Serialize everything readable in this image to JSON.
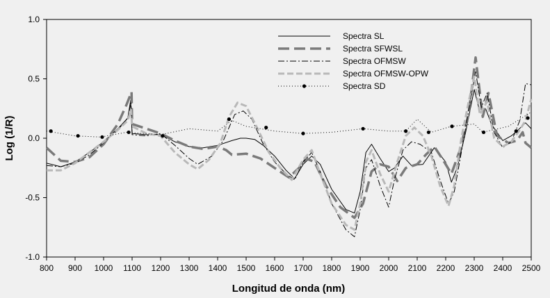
{
  "chart_data": {
    "type": "line",
    "title": "",
    "xlabel": "Longitud de onda (nm)",
    "ylabel": "Log (1/R)",
    "xlim": [
      800,
      2500
    ],
    "ylim": [
      -1.0,
      1.0
    ],
    "x_ticks": [
      800,
      900,
      1000,
      1100,
      1200,
      1300,
      1400,
      1500,
      1600,
      1700,
      1800,
      1900,
      2000,
      2100,
      2200,
      2300,
      2400,
      2500
    ],
    "y_ticks": [
      -1.0,
      -0.5,
      0.0,
      0.5,
      1.0
    ],
    "y_tick_labels": [
      "-1.0",
      "-0.5",
      "0.0",
      "0.5",
      "1.0"
    ],
    "grid": false,
    "legend_position": "top-right",
    "series": [
      {
        "name": "Spectra SL",
        "style": "solid",
        "color": "#000000",
        "points": [
          [
            800,
            -0.21
          ],
          [
            850,
            -0.24
          ],
          [
            900,
            -0.2
          ],
          [
            950,
            -0.12
          ],
          [
            1000,
            -0.03
          ],
          [
            1050,
            0.08
          ],
          [
            1085,
            0.17
          ],
          [
            1095,
            0.32
          ],
          [
            1100,
            0.04
          ],
          [
            1150,
            0.03
          ],
          [
            1200,
            0.03
          ],
          [
            1250,
            -0.03
          ],
          [
            1300,
            -0.07
          ],
          [
            1350,
            -0.08
          ],
          [
            1400,
            -0.06
          ],
          [
            1450,
            -0.02
          ],
          [
            1480,
            0.0
          ],
          [
            1500,
            0.0
          ],
          [
            1530,
            -0.01
          ],
          [
            1560,
            -0.06
          ],
          [
            1600,
            -0.15
          ],
          [
            1640,
            -0.27
          ],
          [
            1670,
            -0.34
          ],
          [
            1700,
            -0.22
          ],
          [
            1730,
            -0.15
          ],
          [
            1760,
            -0.22
          ],
          [
            1800,
            -0.43
          ],
          [
            1850,
            -0.6
          ],
          [
            1880,
            -0.63
          ],
          [
            1900,
            -0.45
          ],
          [
            1920,
            -0.12
          ],
          [
            1940,
            -0.05
          ],
          [
            1970,
            -0.17
          ],
          [
            2000,
            -0.28
          ],
          [
            2020,
            -0.25
          ],
          [
            2050,
            -0.15
          ],
          [
            2080,
            -0.23
          ],
          [
            2120,
            -0.22
          ],
          [
            2160,
            -0.08
          ],
          [
            2200,
            -0.2
          ],
          [
            2220,
            -0.37
          ],
          [
            2240,
            -0.25
          ],
          [
            2270,
            0.05
          ],
          [
            2300,
            0.41
          ],
          [
            2320,
            0.22
          ],
          [
            2340,
            0.25
          ],
          [
            2360,
            0.12
          ],
          [
            2400,
            -0.02
          ],
          [
            2430,
            0.02
          ],
          [
            2450,
            0.06
          ],
          [
            2480,
            0.13
          ],
          [
            2500,
            0.08
          ]
        ]
      },
      {
        "name": "Spectra SFWSL",
        "style": "long-dash",
        "color": "#7a7a7a",
        "points": [
          [
            800,
            -0.08
          ],
          [
            850,
            -0.19
          ],
          [
            900,
            -0.2
          ],
          [
            950,
            -0.16
          ],
          [
            1000,
            -0.05
          ],
          [
            1050,
            0.12
          ],
          [
            1080,
            0.28
          ],
          [
            1098,
            0.39
          ],
          [
            1100,
            0.12
          ],
          [
            1150,
            0.08
          ],
          [
            1200,
            0.04
          ],
          [
            1250,
            -0.02
          ],
          [
            1300,
            -0.07
          ],
          [
            1350,
            -0.09
          ],
          [
            1400,
            -0.07
          ],
          [
            1430,
            -0.1
          ],
          [
            1450,
            -0.14
          ],
          [
            1500,
            -0.13
          ],
          [
            1550,
            -0.17
          ],
          [
            1600,
            -0.25
          ],
          [
            1650,
            -0.33
          ],
          [
            1690,
            -0.24
          ],
          [
            1710,
            -0.17
          ],
          [
            1740,
            -0.2
          ],
          [
            1780,
            -0.4
          ],
          [
            1830,
            -0.58
          ],
          [
            1880,
            -0.67
          ],
          [
            1910,
            -0.55
          ],
          [
            1940,
            -0.28
          ],
          [
            1970,
            -0.22
          ],
          [
            2000,
            -0.24
          ],
          [
            2030,
            -0.36
          ],
          [
            2060,
            -0.25
          ],
          [
            2100,
            -0.22
          ],
          [
            2130,
            -0.14
          ],
          [
            2160,
            -0.07
          ],
          [
            2190,
            -0.18
          ],
          [
            2220,
            -0.3
          ],
          [
            2250,
            -0.1
          ],
          [
            2280,
            0.2
          ],
          [
            2305,
            0.68
          ],
          [
            2330,
            0.18
          ],
          [
            2350,
            0.38
          ],
          [
            2380,
            0.02
          ],
          [
            2420,
            -0.04
          ],
          [
            2450,
            -0.02
          ],
          [
            2470,
            0.05
          ],
          [
            2480,
            -0.04
          ],
          [
            2500,
            -0.08
          ]
        ]
      },
      {
        "name": "Spectra OFMSW",
        "style": "dash-dot",
        "color": "#000000",
        "points": [
          [
            800,
            -0.23
          ],
          [
            850,
            -0.24
          ],
          [
            900,
            -0.21
          ],
          [
            950,
            -0.14
          ],
          [
            1000,
            -0.04
          ],
          [
            1050,
            0.07
          ],
          [
            1085,
            0.17
          ],
          [
            1096,
            0.3
          ],
          [
            1100,
            0.03
          ],
          [
            1150,
            0.02
          ],
          [
            1200,
            0.04
          ],
          [
            1250,
            -0.06
          ],
          [
            1300,
            -0.17
          ],
          [
            1330,
            -0.22
          ],
          [
            1380,
            -0.15
          ],
          [
            1420,
            -0.02
          ],
          [
            1460,
            0.2
          ],
          [
            1490,
            0.23
          ],
          [
            1520,
            0.16
          ],
          [
            1560,
            -0.05
          ],
          [
            1600,
            -0.2
          ],
          [
            1640,
            -0.3
          ],
          [
            1670,
            -0.35
          ],
          [
            1700,
            -0.2
          ],
          [
            1730,
            -0.12
          ],
          [
            1760,
            -0.28
          ],
          [
            1800,
            -0.55
          ],
          [
            1850,
            -0.77
          ],
          [
            1880,
            -0.83
          ],
          [
            1900,
            -0.6
          ],
          [
            1920,
            -0.25
          ],
          [
            1940,
            -0.18
          ],
          [
            1970,
            -0.4
          ],
          [
            2000,
            -0.58
          ],
          [
            2020,
            -0.35
          ],
          [
            2050,
            -0.1
          ],
          [
            2080,
            -0.03
          ],
          [
            2110,
            -0.05
          ],
          [
            2150,
            -0.12
          ],
          [
            2180,
            -0.35
          ],
          [
            2210,
            -0.55
          ],
          [
            2230,
            -0.45
          ],
          [
            2260,
            -0.05
          ],
          [
            2285,
            0.3
          ],
          [
            2305,
            0.56
          ],
          [
            2325,
            0.26
          ],
          [
            2345,
            0.38
          ],
          [
            2370,
            0.05
          ],
          [
            2400,
            -0.08
          ],
          [
            2430,
            -0.03
          ],
          [
            2460,
            0.15
          ],
          [
            2480,
            0.46
          ],
          [
            2500,
            0.45
          ]
        ]
      },
      {
        "name": "Spectra OFMSW-OPW",
        "style": "dash",
        "color": "#b8b8b8",
        "points": [
          [
            800,
            -0.27
          ],
          [
            850,
            -0.27
          ],
          [
            900,
            -0.21
          ],
          [
            950,
            -0.12
          ],
          [
            1000,
            -0.03
          ],
          [
            1050,
            0.07
          ],
          [
            1085,
            0.15
          ],
          [
            1096,
            0.24
          ],
          [
            1100,
            0.1
          ],
          [
            1150,
            0.04
          ],
          [
            1200,
            0.02
          ],
          [
            1250,
            -0.12
          ],
          [
            1300,
            -0.22
          ],
          [
            1330,
            -0.26
          ],
          [
            1370,
            -0.18
          ],
          [
            1410,
            -0.04
          ],
          [
            1440,
            0.18
          ],
          [
            1470,
            0.3
          ],
          [
            1500,
            0.27
          ],
          [
            1540,
            0.08
          ],
          [
            1580,
            -0.12
          ],
          [
            1620,
            -0.25
          ],
          [
            1660,
            -0.35
          ],
          [
            1700,
            -0.18
          ],
          [
            1730,
            -0.1
          ],
          [
            1760,
            -0.3
          ],
          [
            1800,
            -0.55
          ],
          [
            1850,
            -0.73
          ],
          [
            1880,
            -0.77
          ],
          [
            1900,
            -0.55
          ],
          [
            1920,
            -0.2
          ],
          [
            1940,
            -0.1
          ],
          [
            1970,
            -0.3
          ],
          [
            2000,
            -0.45
          ],
          [
            2030,
            -0.2
          ],
          [
            2060,
            0.02
          ],
          [
            2090,
            0.09
          ],
          [
            2120,
            0.02
          ],
          [
            2150,
            -0.15
          ],
          [
            2180,
            -0.4
          ],
          [
            2210,
            -0.57
          ],
          [
            2230,
            -0.4
          ],
          [
            2255,
            0.0
          ],
          [
            2280,
            0.3
          ],
          [
            2300,
            0.52
          ],
          [
            2320,
            0.2
          ],
          [
            2345,
            0.31
          ],
          [
            2370,
            0.0
          ],
          [
            2400,
            -0.07
          ],
          [
            2430,
            -0.03
          ],
          [
            2460,
            0.07
          ],
          [
            2480,
            0.15
          ],
          [
            2500,
            0.33
          ]
        ]
      },
      {
        "name": "Spectra SD",
        "style": "dotted",
        "color": "#000000",
        "points": [
          [
            800,
            0.06
          ],
          [
            900,
            0.02
          ],
          [
            990,
            0.01
          ],
          [
            1080,
            0.05
          ],
          [
            1200,
            0.03
          ],
          [
            1300,
            0.08
          ],
          [
            1400,
            0.06
          ],
          [
            1450,
            0.15
          ],
          [
            1500,
            0.1
          ],
          [
            1600,
            0.06
          ],
          [
            1700,
            0.04
          ],
          [
            1800,
            0.05
          ],
          [
            1910,
            0.08
          ],
          [
            2000,
            0.06
          ],
          [
            2060,
            0.06
          ],
          [
            2100,
            0.16
          ],
          [
            2150,
            0.05
          ],
          [
            2220,
            0.1
          ],
          [
            2300,
            0.12
          ],
          [
            2330,
            0.05
          ],
          [
            2420,
            0.1
          ],
          [
            2500,
            0.22
          ]
        ],
        "markers": [
          [
            815,
            0.06
          ],
          [
            910,
            0.02
          ],
          [
            995,
            0.01
          ],
          [
            1088,
            0.05
          ],
          [
            1207,
            0.02
          ],
          [
            1440,
            0.16
          ],
          [
            1570,
            0.09
          ],
          [
            1700,
            0.04
          ],
          [
            1910,
            0.08
          ],
          [
            2060,
            0.06
          ],
          [
            2140,
            0.05
          ],
          [
            2222,
            0.1
          ],
          [
            2333,
            0.05
          ],
          [
            2447,
            0.06
          ],
          [
            2488,
            0.17
          ]
        ]
      }
    ]
  }
}
